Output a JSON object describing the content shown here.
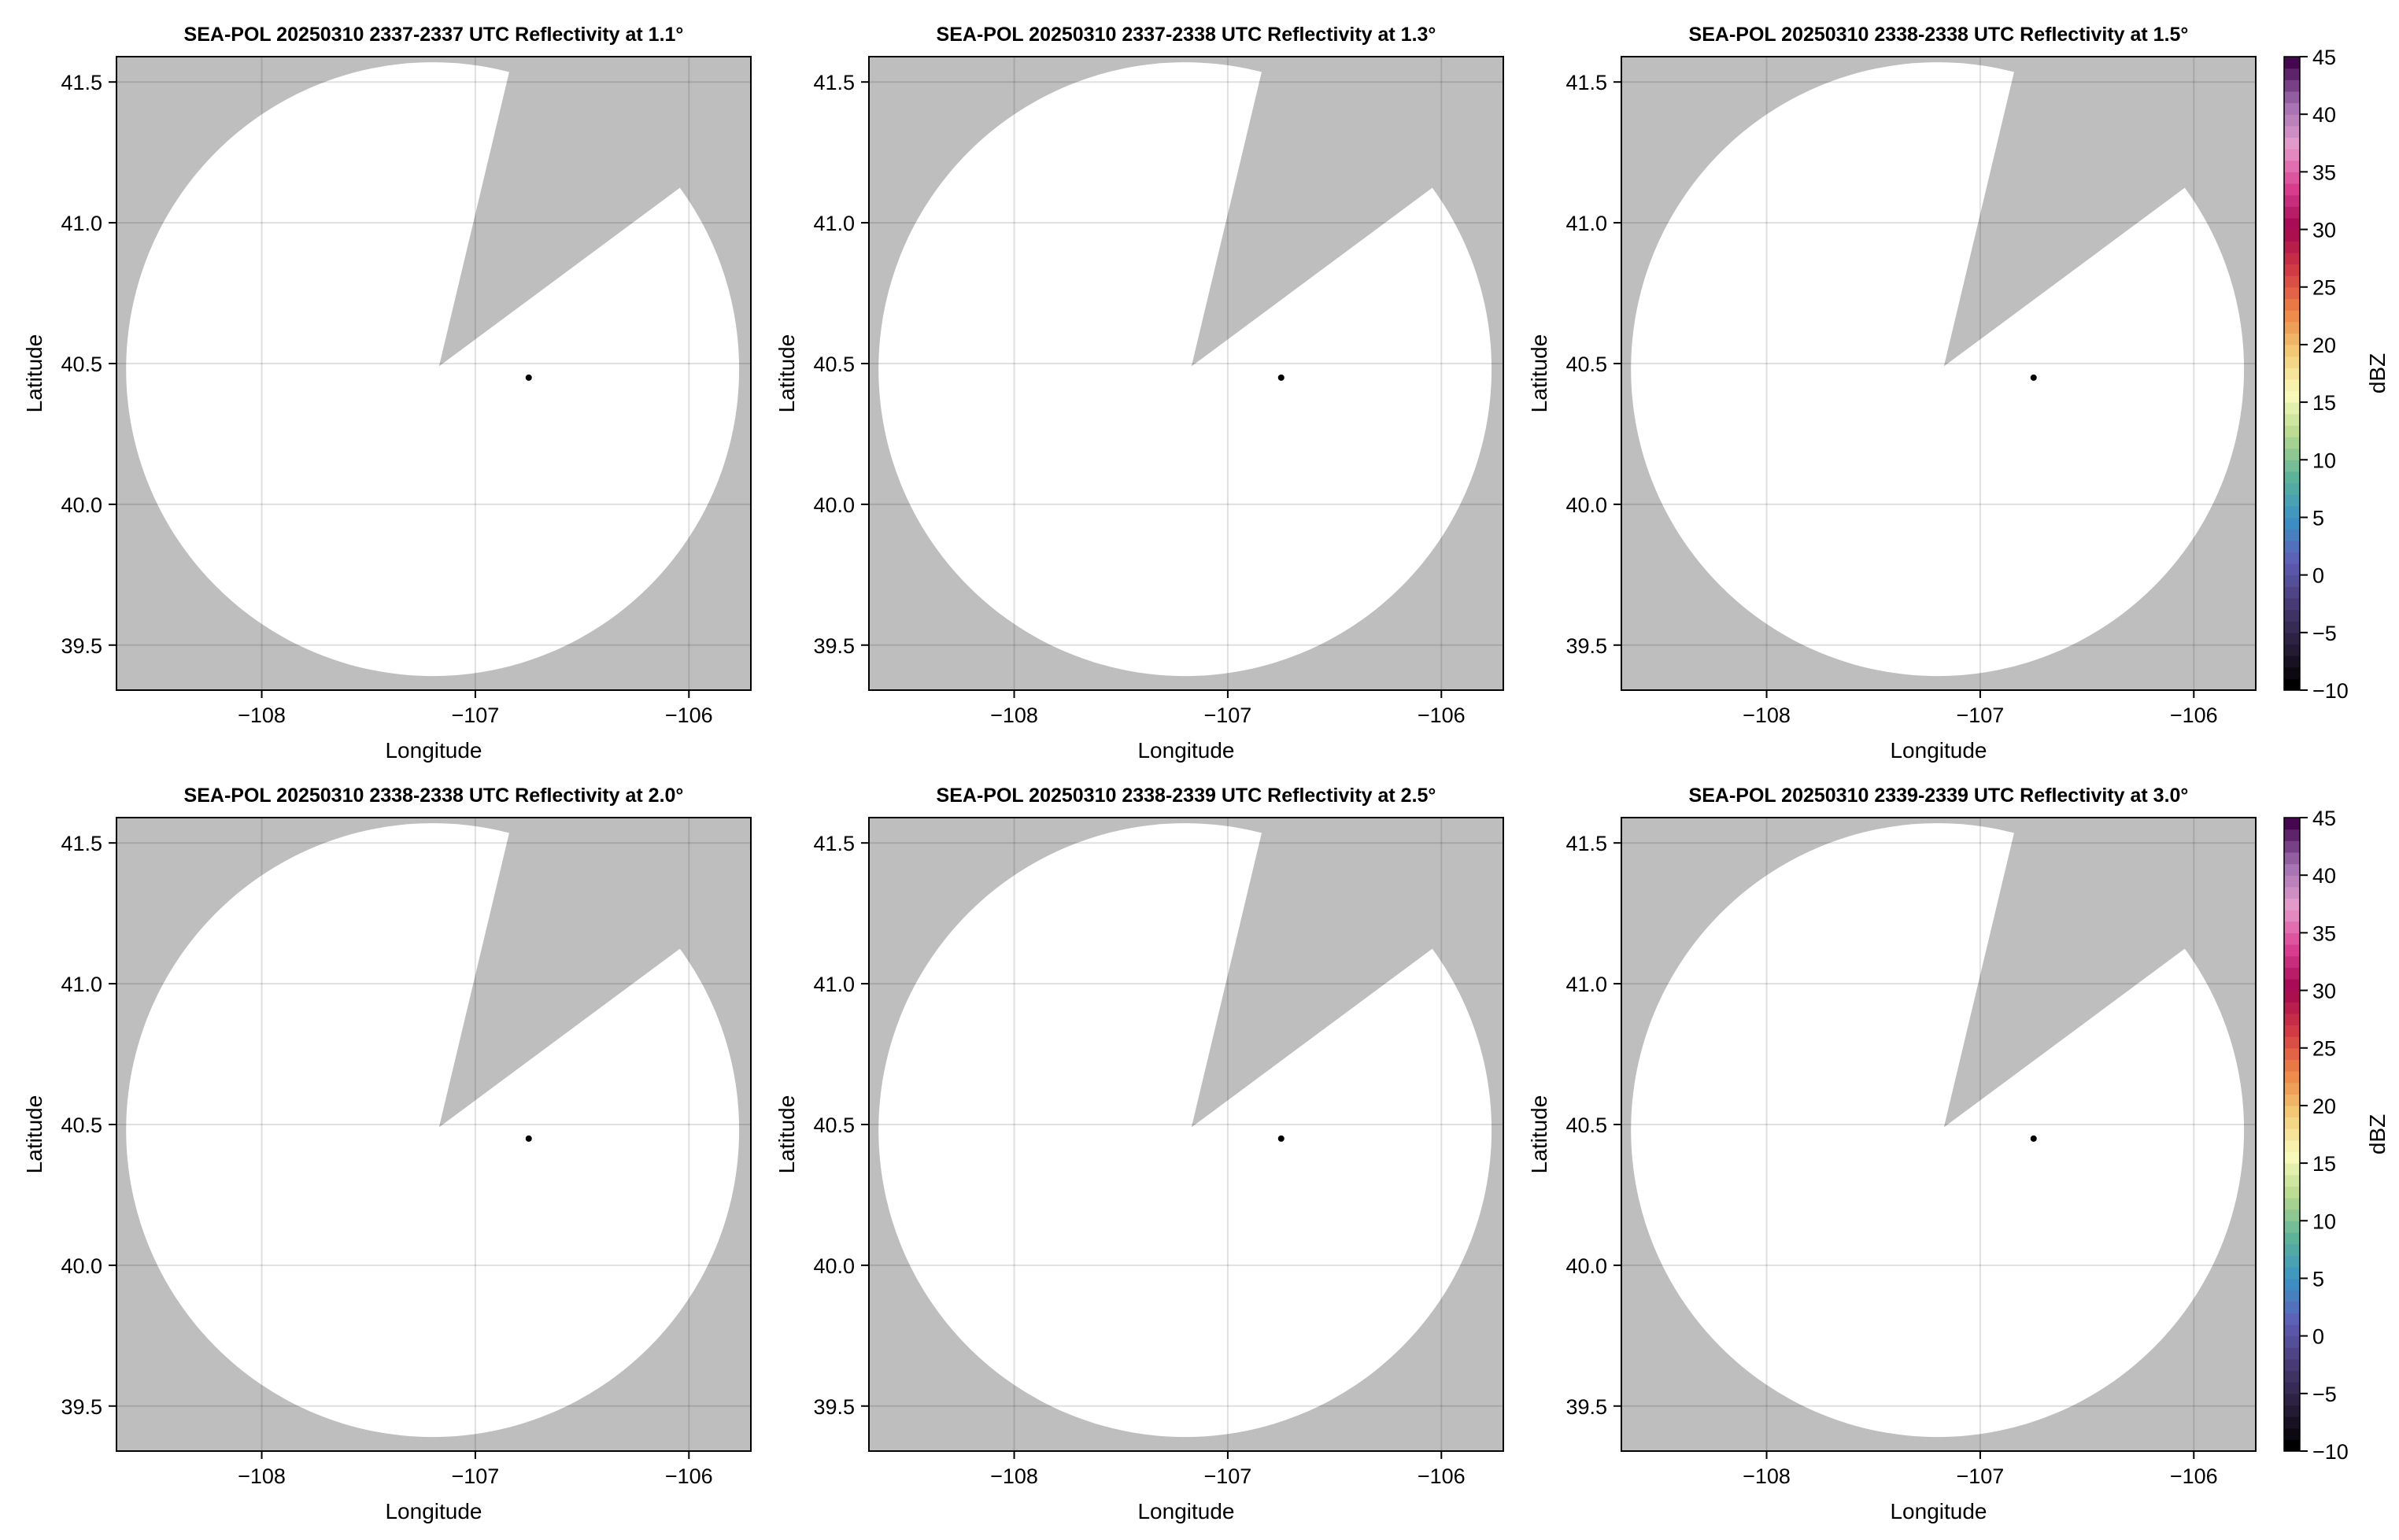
{
  "chart_data": [
    {
      "type": "heatmap",
      "title": "SEA-POL 20250310 2337-2337 UTC Reflectivity at 1.1°",
      "xlabel": "Longitude",
      "ylabel": "Latitude",
      "colorbar": false
    },
    {
      "type": "heatmap",
      "title": "SEA-POL 20250310 2337-2338 UTC Reflectivity at 1.3°",
      "xlabel": "Longitude",
      "ylabel": "Latitude",
      "colorbar": false
    },
    {
      "type": "heatmap",
      "title": "SEA-POL 20250310 2338-2338 UTC Reflectivity at 1.5°",
      "xlabel": "Longitude",
      "ylabel": "Latitude",
      "colorbar": true
    },
    {
      "type": "heatmap",
      "title": "SEA-POL 20250310 2338-2338 UTC Reflectivity at 2.0°",
      "xlabel": "Longitude",
      "ylabel": "Latitude",
      "colorbar": false
    },
    {
      "type": "heatmap",
      "title": "SEA-POL 20250310 2338-2339 UTC Reflectivity at 2.5°",
      "xlabel": "Longitude",
      "ylabel": "Latitude",
      "colorbar": false
    },
    {
      "type": "heatmap",
      "title": "SEA-POL 20250310 2339-2339 UTC Reflectivity at 3.0°",
      "xlabel": "Longitude",
      "ylabel": "Latitude",
      "colorbar": true
    }
  ],
  "shared": {
    "xlim": [
      -108.68,
      -105.71
    ],
    "ylim": [
      39.34,
      41.59
    ],
    "xticks": [
      -108,
      -107,
      -106
    ],
    "xtick_labels": [
      "−108",
      "−107",
      "−106"
    ],
    "yticks": [
      39.5,
      40.0,
      40.5,
      41.0,
      41.5
    ],
    "ytick_labels": [
      "39.5",
      "40.0",
      "40.5",
      "41.0",
      "41.5"
    ],
    "grid": true,
    "missing_color": "#bebebe",
    "valid_no_echo_color": "#ffffff",
    "radar_site": {
      "lon": -106.75,
      "lat": 40.45
    },
    "coverage": {
      "center": [
        -107.2,
        40.48
      ],
      "radius_lon": 1.435,
      "radius_lat": 1.09,
      "blocked_sector": [
        [
          -107.17,
          40.49
        ],
        [
          -106.84,
          41.54
        ],
        [
          -106.05,
          41.12
        ]
      ]
    },
    "colorbar": {
      "label": "dBZ",
      "range": [
        -10,
        45
      ],
      "ticks": [
        -10,
        -5,
        0,
        5,
        10,
        15,
        20,
        25,
        30,
        35,
        40,
        45
      ],
      "tick_labels": [
        "−10",
        "−5",
        "0",
        "5",
        "10",
        "15",
        "20",
        "25",
        "30",
        "35",
        "40",
        "45"
      ],
      "colormap_stops": [
        "#000000",
        "#2a1f3d",
        "#4a3d78",
        "#5f5fb8",
        "#3a93c3",
        "#5cb39a",
        "#b4d88e",
        "#fafbbd",
        "#f2cc78",
        "#ec8445",
        "#d23b45",
        "#a3064f",
        "#db3f92",
        "#e69dcd",
        "#a06fb0",
        "#45074f"
      ]
    }
  }
}
